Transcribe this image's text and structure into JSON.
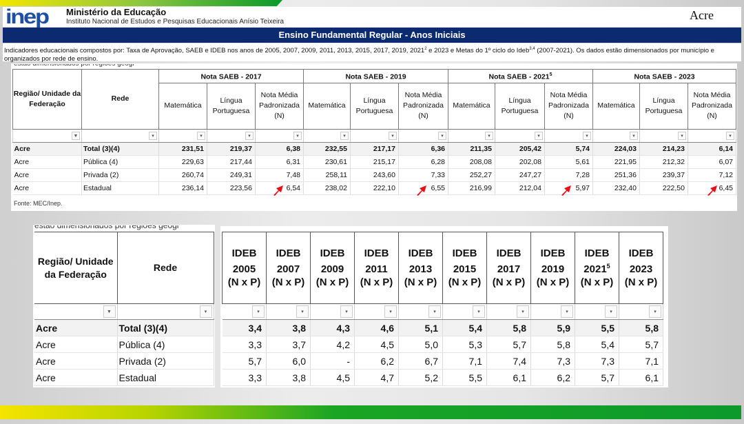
{
  "header": {
    "logo_text": "inep",
    "ministry": "Ministério da Educação",
    "institute": "Instituto Nacional de Estudos e Pesquisas Educacionais Anísio Teixeira",
    "state": "Acre"
  },
  "title": "Ensino Fundamental Regular - Anos Iniciais",
  "description": {
    "part1": "Indicadores educacionais compostos por: Taxa de Aprovação, SAEB e IDEB nos anos de 2005, 2007, 2009, 2011, 2013, 2015, 2017, 2019, 2021",
    "sup1": "2",
    "part2": " e 2023 e Metas do 1º ciclo do Ideb",
    "sup2": "3,4",
    "part3": " (2007-2021). Os dados estão dimensionados por município e organizados por rede de ensino."
  },
  "cut_text": "estão dimensionados por regiões geogr",
  "saeb_table": {
    "col_region": "Região/ Unidade da Federação",
    "col_rede": "Rede",
    "groups": [
      {
        "label": "Nota SAEB - 2017",
        "sup": ""
      },
      {
        "label": "Nota SAEB - 2019",
        "sup": ""
      },
      {
        "label": "Nota SAEB - 2021",
        "sup": "5"
      },
      {
        "label": "Nota SAEB - 2023",
        "sup": ""
      }
    ],
    "subcols": [
      "Matemática",
      "Língua Portuguesa",
      "Nota Média Padronizada (N)"
    ],
    "rows": [
      {
        "region": "Acre",
        "rede": "Total (3)(4)",
        "values": [
          "231,51",
          "219,37",
          "6,38",
          "232,55",
          "217,17",
          "6,36",
          "211,35",
          "205,42",
          "5,74",
          "224,03",
          "214,23",
          "6,14"
        ]
      },
      {
        "region": "Acre",
        "rede": "Pública (4)",
        "values": [
          "229,63",
          "217,44",
          "6,31",
          "230,61",
          "215,17",
          "6,28",
          "208,08",
          "202,08",
          "5,61",
          "221,95",
          "212,32",
          "6,07"
        ]
      },
      {
        "region": "Acre",
        "rede": "Privada (2)",
        "values": [
          "260,74",
          "249,31",
          "7,48",
          "258,11",
          "243,60",
          "7,33",
          "252,27",
          "247,27",
          "7,28",
          "251,36",
          "239,37",
          "7,12"
        ]
      },
      {
        "region": "Acre",
        "rede": "Estadual",
        "values": [
          "236,14",
          "223,56",
          "6,54",
          "238,02",
          "222,10",
          "6,55",
          "216,99",
          "212,04",
          "5,97",
          "232,40",
          "222,50",
          "6,45"
        ]
      }
    ],
    "source": "Fonte: MEC/Inep."
  },
  "ideb_table": {
    "col_region": "Região/ Unidade da Federação",
    "col_rede": "Rede",
    "columns": [
      {
        "l1": "IDEB",
        "year": "2005",
        "sup": "",
        "l3": "(N x P)"
      },
      {
        "l1": "IDEB",
        "year": "2007",
        "sup": "",
        "l3": "(N x P)"
      },
      {
        "l1": "IDEB",
        "year": "2009",
        "sup": "",
        "l3": "(N x P)"
      },
      {
        "l1": "IDEB",
        "year": "2011",
        "sup": "",
        "l3": "(N x P)"
      },
      {
        "l1": "IDEB",
        "year": "2013",
        "sup": "",
        "l3": "(N x P)"
      },
      {
        "l1": "IDEB",
        "year": "2015",
        "sup": "",
        "l3": "(N x P)"
      },
      {
        "l1": "IDEB",
        "year": "2017",
        "sup": "",
        "l3": "(N x P)"
      },
      {
        "l1": "IDEB",
        "year": "2019",
        "sup": "",
        "l3": "(N x P)"
      },
      {
        "l1": "IDEB",
        "year": "2021",
        "sup": "5",
        "l3": "(N x P)"
      },
      {
        "l1": "IDEB",
        "year": "2023",
        "sup": "",
        "l3": "(N x P)"
      }
    ],
    "rows": [
      {
        "region": "Acre",
        "rede": "Total (3)(4)",
        "values": [
          "3,4",
          "3,8",
          "4,3",
          "4,6",
          "5,1",
          "5,4",
          "5,8",
          "5,9",
          "5,5",
          "5,8"
        ]
      },
      {
        "region": "Acre",
        "rede": "Pública (4)",
        "values": [
          "3,3",
          "3,7",
          "4,2",
          "4,5",
          "5,0",
          "5,3",
          "5,7",
          "5,8",
          "5,4",
          "5,7"
        ]
      },
      {
        "region": "Acre",
        "rede": "Privada (2)",
        "values": [
          "5,7",
          "6,0",
          "-",
          "6,2",
          "6,7",
          "7,1",
          "7,4",
          "7,3",
          "7,3",
          "7,1"
        ]
      },
      {
        "region": "Acre",
        "rede": "Estadual",
        "values": [
          "3,3",
          "3,8",
          "4,5",
          "4,7",
          "5,2",
          "5,5",
          "6,1",
          "6,2",
          "5,7",
          "6,1"
        ]
      }
    ]
  },
  "icons": {
    "filter": "filter-icon",
    "dropdown": "chevron-down-icon",
    "annotation": "red-arrow-icon"
  },
  "colors": {
    "title_bar": "#0b2a6f",
    "logo": "#1e4fa3",
    "arrow": "#e8101a"
  }
}
